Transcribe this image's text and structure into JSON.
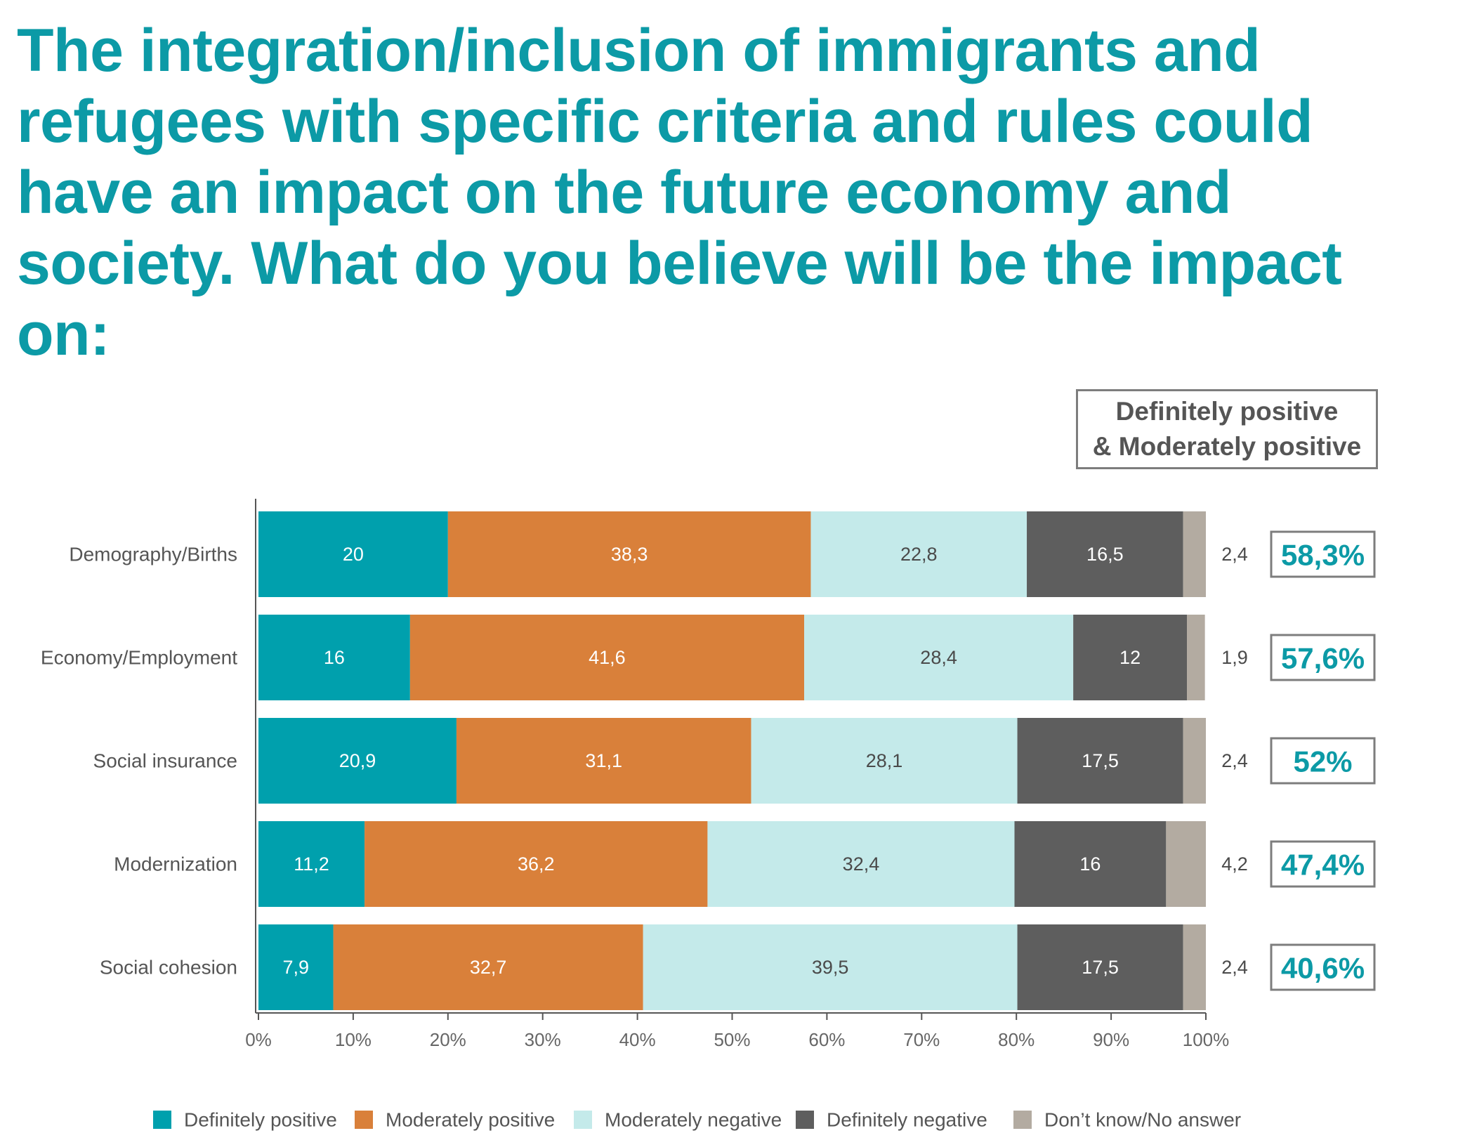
{
  "title": "The integration/inclusion of immigrants and refugees with specific criteria and rules could have an impact on the future economy and society. What do you believe will be the impact on:",
  "summary_header": {
    "line1": "Definitely positive",
    "line2": "& Moderately positive"
  },
  "chart_data": {
    "type": "bar",
    "orientation": "horizontal",
    "stacked": true,
    "categories": [
      "Demography/Births",
      "Economy/Employment",
      "Social insurance",
      "Modernization",
      "Social cohesion"
    ],
    "series": [
      {
        "name": "Definitely positive",
        "color": "#00a0ad",
        "label_color": "#ffffff",
        "values": [
          20,
          16,
          20.9,
          11.2,
          7.9
        ]
      },
      {
        "name": "Moderately positive",
        "color": "#d9803a",
        "label_color": "#ffffff",
        "values": [
          38.3,
          41.6,
          31.1,
          36.2,
          32.7
        ]
      },
      {
        "name": "Moderately negative",
        "color": "#c4eaea",
        "label_color": "#4a4a4a",
        "values": [
          22.8,
          28.4,
          28.1,
          32.4,
          39.5
        ]
      },
      {
        "name": "Definitely negative",
        "color": "#5e5e5e",
        "label_color": "#ffffff",
        "values": [
          16.5,
          12,
          17.5,
          16,
          17.5
        ]
      },
      {
        "name": "Don’t know/No answer",
        "color": "#b3aba1",
        "label_color": "#4a4a4a",
        "values": [
          2.4,
          1.9,
          2.4,
          4.2,
          2.4
        ]
      }
    ],
    "value_labels": [
      [
        "20",
        "38,3",
        "22,8",
        "16,5",
        "2,4"
      ],
      [
        "16",
        "41,6",
        "28,4",
        "12",
        "1,9"
      ],
      [
        "20,9",
        "31,1",
        "28,1",
        "17,5",
        "2,4"
      ],
      [
        "11,2",
        "36,2",
        "32,4",
        "16",
        "4,2"
      ],
      [
        "7,9",
        "32,7",
        "39,5",
        "17,5",
        "2,4"
      ]
    ],
    "positive_totals": [
      "58,3%",
      "57,6%",
      "52%",
      "47,4%",
      "40,6%"
    ],
    "xlim": [
      0,
      100
    ],
    "x_ticks": [
      "0%",
      "10%",
      "20%",
      "30%",
      "40%",
      "50%",
      "60%",
      "70%",
      "80%",
      "90%",
      "100%"
    ],
    "grid": false,
    "legend_position": "bottom",
    "accent_color": "#0c9aa6"
  }
}
